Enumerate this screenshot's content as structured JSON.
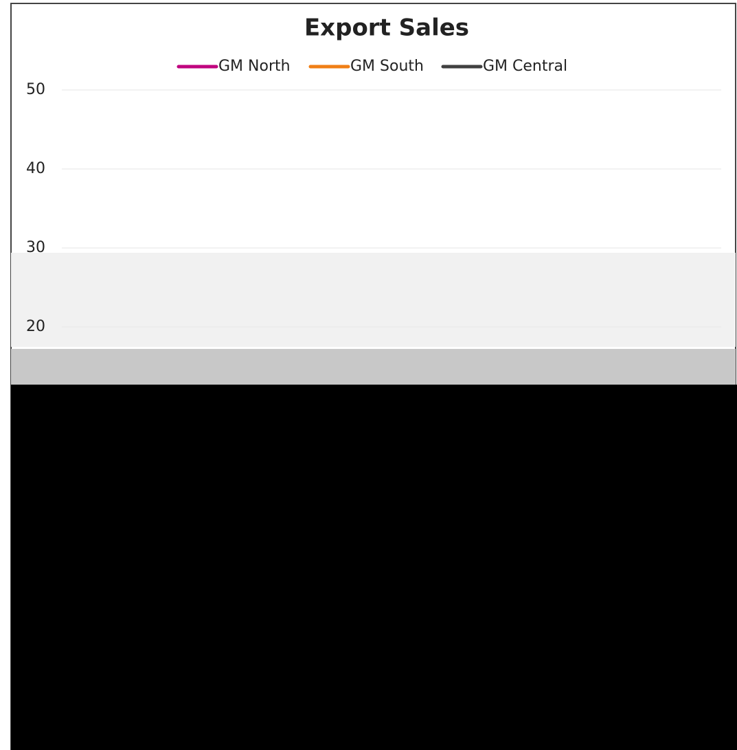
{
  "chart_data": {
    "type": "line",
    "title": "Export Sales",
    "series": [
      {
        "name": "GM North",
        "color": "#c0047f",
        "values": []
      },
      {
        "name": "GM South",
        "color": "#f07f16",
        "values": []
      },
      {
        "name": "GM Central",
        "color": "#404040",
        "values": []
      }
    ],
    "ylim": [
      20,
      50
    ],
    "yticks": [
      20,
      30,
      40,
      50
    ],
    "grid": true,
    "legend": "top"
  }
}
